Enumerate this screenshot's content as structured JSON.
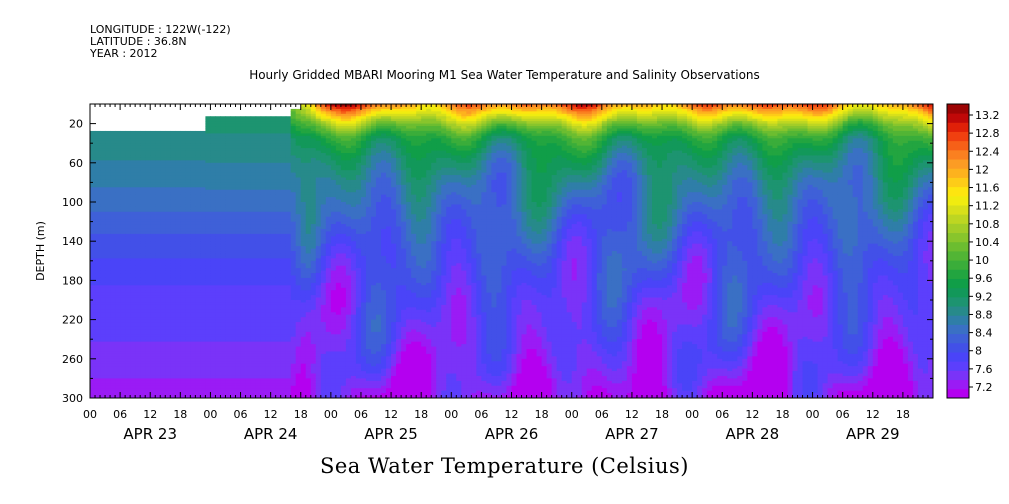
{
  "header": {
    "longitude": "LONGITUDE : 122W(-122)",
    "latitude": "LATITUDE : 36.8N",
    "year": "YEAR : 2012"
  },
  "chart_data": {
    "type": "heatmap",
    "title": "Hourly Gridded MBARI Mooring M1 Sea Water Temperature and Salinity Observations",
    "xlabel": "Sea Water Temperature (Celsius)",
    "ylabel": "DEPTH (m)",
    "ylim": [
      300,
      0
    ],
    "xlim_hours": [
      0,
      168
    ],
    "y_ticks": [
      20,
      60,
      100,
      140,
      180,
      220,
      260,
      300
    ],
    "x_hour_ticks": [
      "00",
      "06",
      "12",
      "18",
      "00",
      "06",
      "12",
      "18",
      "00",
      "06",
      "12",
      "18",
      "00",
      "06",
      "12",
      "18",
      "00",
      "06",
      "12",
      "18",
      "00",
      "06",
      "12",
      "18",
      "00",
      "06",
      "12",
      "18"
    ],
    "day_labels": [
      "APR 23",
      "APR 24",
      "APR 25",
      "APR 26",
      "APR 27",
      "APR 28",
      "APR 29"
    ],
    "colorbar": {
      "labels": [
        "13.2",
        "12.8",
        "12.4",
        "12",
        "11.6",
        "11.2",
        "10.8",
        "10.4",
        "10",
        "9.6",
        "9.2",
        "8.8",
        "8.4",
        "8",
        "7.6",
        "7.2"
      ],
      "levels": [
        7.2,
        7.4,
        7.6,
        7.8,
        8.0,
        8.2,
        8.4,
        8.6,
        8.8,
        9.0,
        9.2,
        9.4,
        9.6,
        9.8,
        10.0,
        10.2,
        10.4,
        10.6,
        10.8,
        11.0,
        11.2,
        11.4,
        11.6,
        11.8,
        12.0,
        12.2,
        12.4,
        12.6,
        12.8,
        13.0,
        13.2,
        13.4
      ],
      "colors": [
        "#b400f0",
        "#9a1bf5",
        "#7a33f8",
        "#5c3ffc",
        "#4a44f8",
        "#4250e8",
        "#3f60d8",
        "#3a70c4",
        "#2f7ea8",
        "#278a8a",
        "#1d9470",
        "#12985a",
        "#109e48",
        "#22a540",
        "#3aad3a",
        "#52b535",
        "#6cbd30",
        "#88c52c",
        "#a2cd28",
        "#bdd622",
        "#d8e01a",
        "#f0ec10",
        "#fde510",
        "#fdcc18",
        "#fdb21e",
        "#fc9c24",
        "#fa8020",
        "#f66018",
        "#f04010",
        "#e02008",
        "#c00808",
        "#9c0404"
      ]
    },
    "data_start_hour": 5,
    "early_profile": {
      "depths": [
        30,
        100,
        145,
        185,
        230,
        270,
        290
      ],
      "temps": [
        9.2,
        8.7,
        8.3,
        8.0,
        7.85,
        7.7,
        7.5
      ]
    },
    "profile": {
      "depths": [
        0,
        6,
        14,
        22,
        35,
        55,
        80,
        120,
        160,
        200,
        240,
        270,
        300
      ],
      "temps": [
        12.6,
        12.0,
        11.3,
        10.6,
        9.8,
        9.3,
        8.9,
        8.55,
        8.25,
        8.0,
        7.85,
        7.65,
        7.35
      ]
    }
  }
}
